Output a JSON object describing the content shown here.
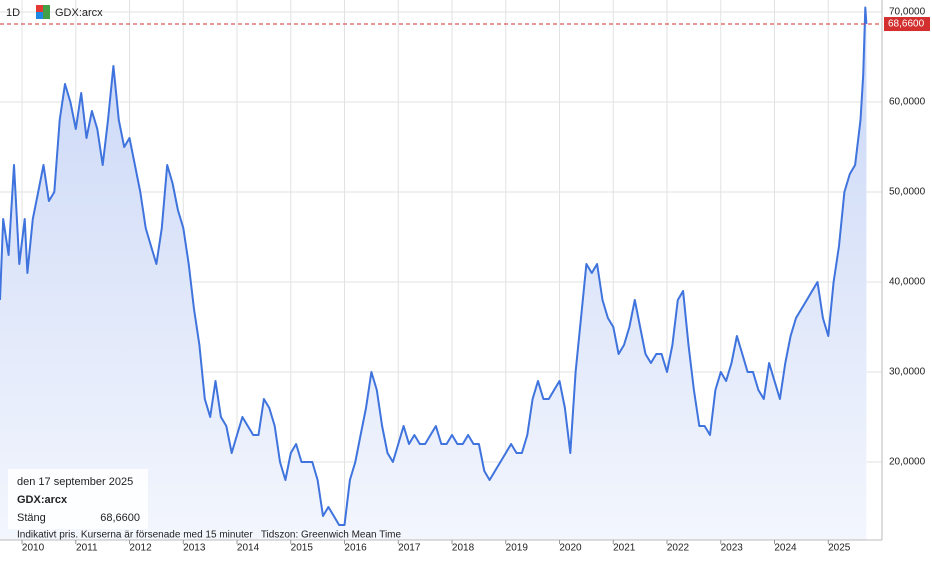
{
  "chart_data": {
    "type": "line",
    "fill": true,
    "interval": "1D",
    "symbol": "GDX:arcx",
    "color": "#3f73dd",
    "grid": true,
    "x": [
      2009.59,
      2009.65,
      2009.75,
      2009.85,
      2009.95,
      2010.05,
      2010.1,
      2010.2,
      2010.3,
      2010.4,
      2010.5,
      2010.6,
      2010.7,
      2010.8,
      2010.9,
      2011.0,
      2011.1,
      2011.2,
      2011.3,
      2011.4,
      2011.5,
      2011.6,
      2011.7,
      2011.8,
      2011.9,
      2012.0,
      2012.1,
      2012.2,
      2012.3,
      2012.4,
      2012.5,
      2012.6,
      2012.7,
      2012.8,
      2012.9,
      2013.0,
      2013.1,
      2013.2,
      2013.3,
      2013.4,
      2013.5,
      2013.6,
      2013.7,
      2013.8,
      2013.9,
      2014.0,
      2014.1,
      2014.2,
      2014.3,
      2014.4,
      2014.5,
      2014.6,
      2014.7,
      2014.8,
      2014.9,
      2015.0,
      2015.1,
      2015.2,
      2015.3,
      2015.4,
      2015.5,
      2015.6,
      2015.7,
      2015.8,
      2015.9,
      2016.0,
      2016.1,
      2016.2,
      2016.3,
      2016.4,
      2016.5,
      2016.6,
      2016.7,
      2016.8,
      2016.9,
      2017.0,
      2017.1,
      2017.2,
      2017.3,
      2017.4,
      2017.5,
      2017.6,
      2017.7,
      2017.8,
      2017.9,
      2018.0,
      2018.1,
      2018.2,
      2018.3,
      2018.4,
      2018.5,
      2018.6,
      2018.7,
      2018.8,
      2018.9,
      2019.0,
      2019.1,
      2019.2,
      2019.3,
      2019.4,
      2019.5,
      2019.6,
      2019.7,
      2019.8,
      2019.9,
      2020.0,
      2020.1,
      2020.2,
      2020.3,
      2020.4,
      2020.5,
      2020.6,
      2020.7,
      2020.8,
      2020.9,
      2021.0,
      2021.1,
      2021.2,
      2021.3,
      2021.4,
      2021.5,
      2021.6,
      2021.7,
      2021.8,
      2021.9,
      2022.0,
      2022.1,
      2022.2,
      2022.3,
      2022.4,
      2022.5,
      2022.6,
      2022.7,
      2022.8,
      2022.9,
      2023.0,
      2023.1,
      2023.2,
      2023.3,
      2023.4,
      2023.5,
      2023.6,
      2023.7,
      2023.8,
      2023.9,
      2024.0,
      2024.1,
      2024.2,
      2024.3,
      2024.4,
      2024.5,
      2024.6,
      2024.7,
      2024.8,
      2024.9,
      2025.0,
      2025.1,
      2025.2,
      2025.3,
      2025.4,
      2025.5,
      2025.6,
      2025.65,
      2025.69,
      2025.71
    ],
    "values": [
      38,
      47,
      43,
      53,
      42,
      47,
      41,
      47,
      50,
      53,
      49,
      50,
      58,
      62,
      60,
      57,
      61,
      56,
      59,
      57,
      53,
      58,
      64,
      58,
      55,
      56,
      53,
      50,
      46,
      44,
      42,
      46,
      53,
      51,
      48,
      46,
      42,
      37,
      33,
      27,
      25,
      29,
      25,
      24,
      21,
      23,
      25,
      24,
      23,
      23,
      27,
      26,
      24,
      20,
      18,
      21,
      22,
      20,
      20,
      20,
      18,
      14,
      15,
      14,
      13,
      13,
      18,
      20,
      23,
      26,
      30,
      28,
      24,
      21,
      20,
      22,
      24,
      22,
      23,
      22,
      22,
      23,
      24,
      22,
      22,
      23,
      22,
      22,
      23,
      22,
      22,
      19,
      18,
      19,
      20,
      21,
      22,
      21,
      21,
      23,
      27,
      29,
      27,
      27,
      28,
      29,
      26,
      21,
      30,
      36,
      42,
      41,
      42,
      38,
      36,
      35,
      32,
      33,
      35,
      38,
      35,
      32,
      31,
      32,
      32,
      30,
      33,
      38,
      39,
      33,
      28,
      24,
      24,
      23,
      28,
      30,
      29,
      31,
      34,
      32,
      30,
      30,
      28,
      27,
      31,
      29,
      27,
      31,
      34,
      36,
      37,
      38,
      39,
      40,
      36,
      34,
      40,
      44,
      50,
      52,
      53,
      58,
      63,
      70.5,
      68.66
    ],
    "xlim": [
      2009.59,
      2026.0
    ],
    "xticks": [
      2010,
      2011,
      2012,
      2013,
      2014,
      2015,
      2016,
      2017,
      2018,
      2019,
      2020,
      2021,
      2022,
      2023,
      2024,
      2025
    ],
    "ylim": [
      11.33,
      71.33
    ],
    "yticks": [
      {
        "value": 20,
        "label": "20,0000"
      },
      {
        "value": 30,
        "label": "30,0000"
      },
      {
        "value": 40,
        "label": "40,0000"
      },
      {
        "value": 50,
        "label": "50,0000"
      },
      {
        "value": 60,
        "label": "60,0000"
      },
      {
        "value": 70,
        "label": "70,0000"
      }
    ],
    "last": {
      "value": 68.66,
      "label": "68,6600",
      "color": "#d32f2f"
    },
    "info": {
      "date": "den 17 september 2025",
      "symbol": "GDX:arcx",
      "close_name": "Stäng"
    },
    "footer": "Indikativt pris. Kurserna är försenade med 15 minuter   Tidszon: Greenwich Mean Time"
  }
}
